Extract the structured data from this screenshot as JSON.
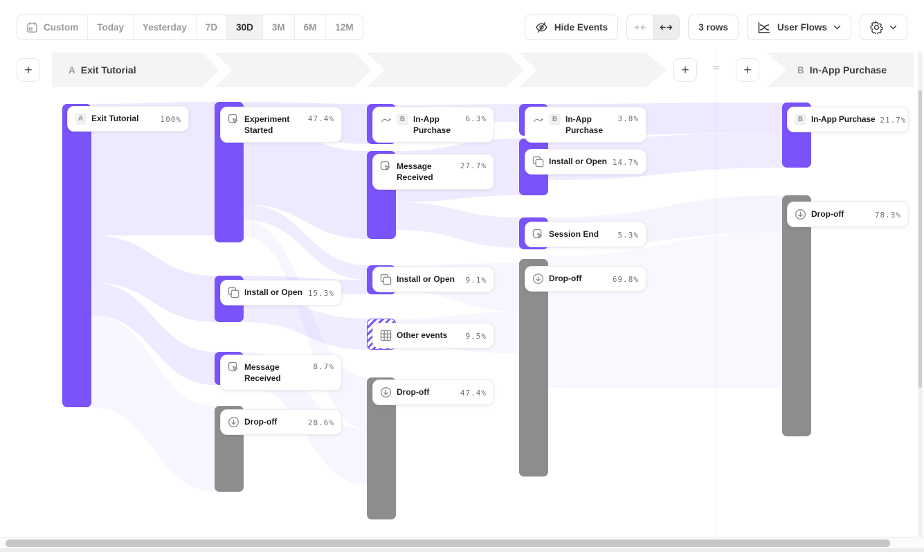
{
  "toolbar": {
    "date_ranges": {
      "custom": "Custom",
      "today": "Today",
      "yesterday": "Yesterday",
      "d7": "7D",
      "d30": "30D",
      "m3": "3M",
      "m6": "6M",
      "m12": "12M",
      "selected": "30D"
    },
    "hide_events": "Hide Events",
    "rows": "3 rows",
    "view": "User Flows"
  },
  "header": {
    "section_a": {
      "badge": "A",
      "title": "Exit Tutorial"
    },
    "section_b": {
      "badge": "B",
      "title": "In-App Purchase"
    },
    "approx": "≈",
    "add": "+"
  },
  "nodes": {
    "c1_exit": {
      "badge": "A",
      "label": "Exit Tutorial",
      "pct": "100%"
    },
    "c2_experiment": {
      "label": "Experiment Started",
      "pct": "47.4%"
    },
    "c2_install": {
      "label": "Install or Open",
      "pct": "15.3%"
    },
    "c2_message": {
      "label": "Message Received",
      "pct": "8.7%"
    },
    "c2_dropoff": {
      "label": "Drop-off",
      "pct": "28.6%"
    },
    "c3_inapp": {
      "badge": "B",
      "label": "In-App Purchase",
      "pct": "6.3%"
    },
    "c3_message": {
      "label": "Message Received",
      "pct": "27.7%"
    },
    "c3_install": {
      "label": "Install or Open",
      "pct": "9.1%"
    },
    "c3_other": {
      "label": "Other events",
      "pct": "9.5%"
    },
    "c3_dropoff": {
      "label": "Drop-off",
      "pct": "47.4%"
    },
    "c4_inapp": {
      "badge": "B",
      "label": "In-App Purchase",
      "pct": "3.8%"
    },
    "c4_install": {
      "label": "Install or Open",
      "pct": "14.7%"
    },
    "c4_session": {
      "label": "Session End",
      "pct": "5.3%"
    },
    "c4_dropoff": {
      "label": "Drop-off",
      "pct": "69.8%"
    },
    "b_inapp": {
      "badge": "B",
      "label": "In-App Purchase",
      "pct": "21.7%"
    },
    "b_dropoff": {
      "label": "Drop-off",
      "pct": "78.3%"
    }
  },
  "colors": {
    "accent_purple": "#7A53FB",
    "dropoff_gray": "#8D8D8F",
    "ribbon_gray": "#F4F4F5"
  }
}
